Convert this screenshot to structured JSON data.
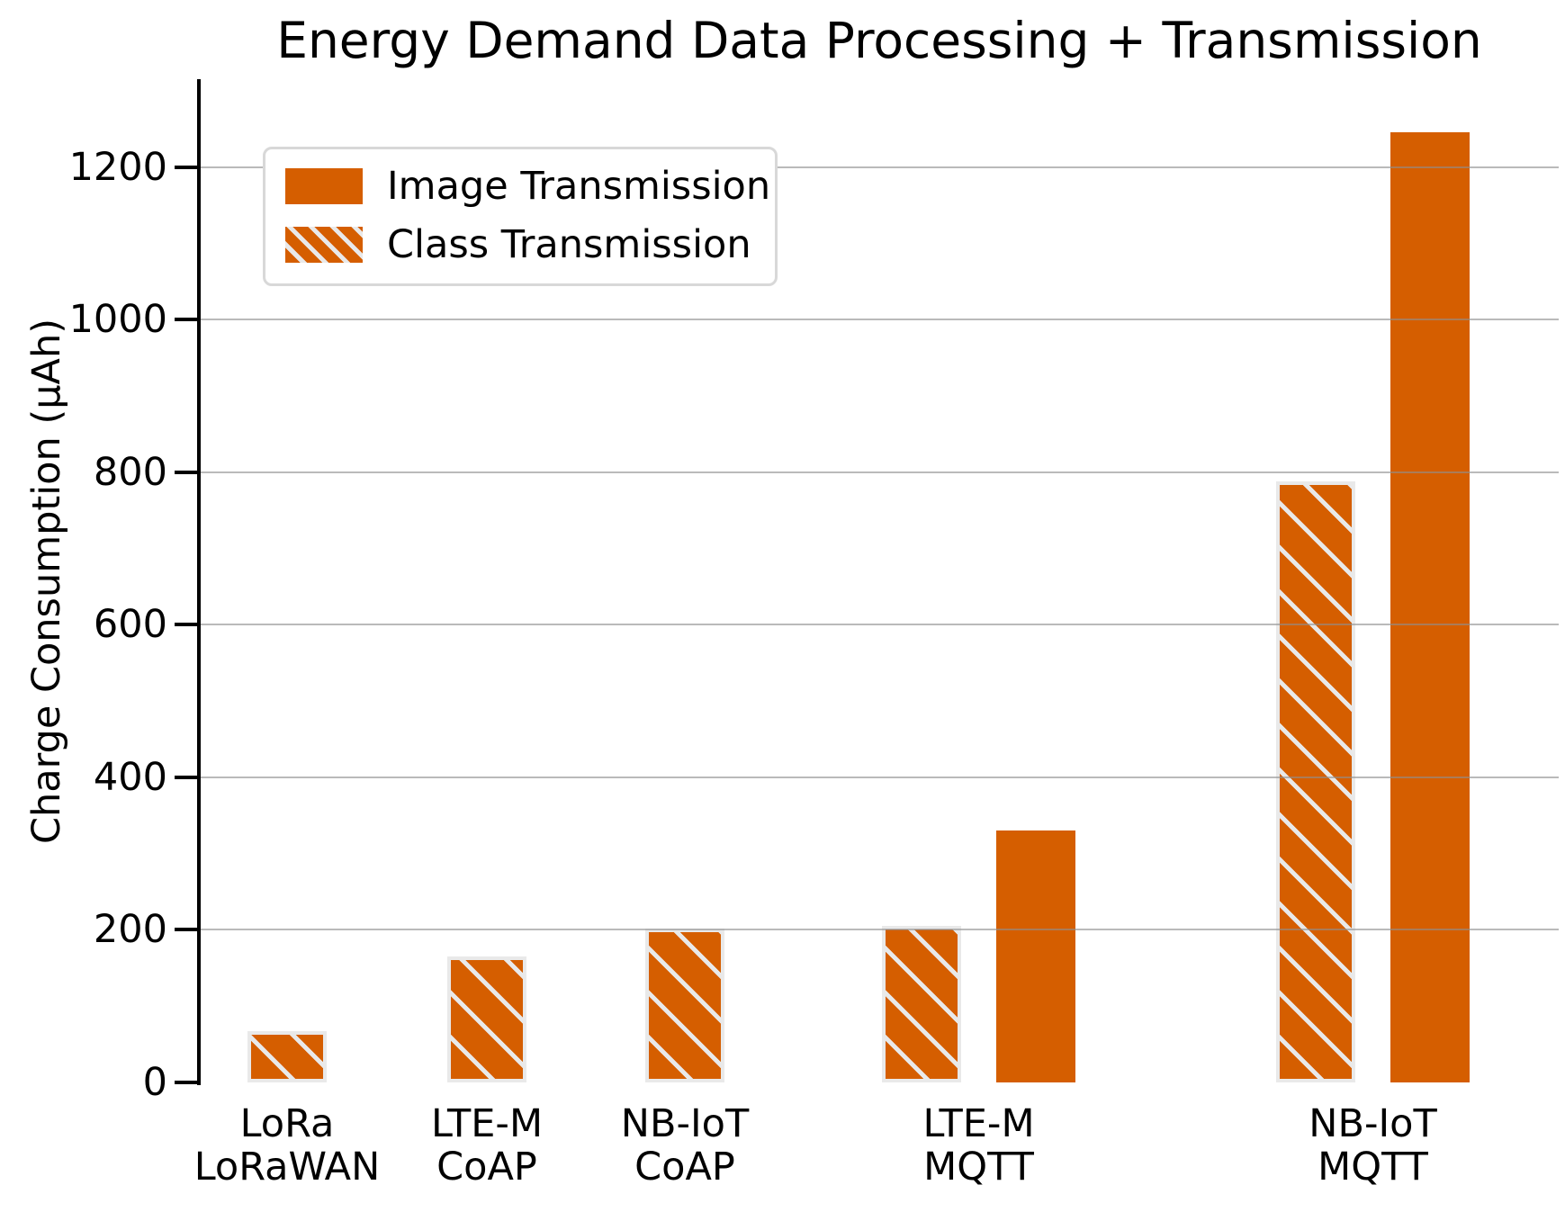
{
  "figure": {
    "title": "Energy Demand Data Processing + Transmission",
    "y_axis": {
      "label": "Charge Consumption (µAh)",
      "ticks": [
        0,
        200,
        400,
        600,
        800,
        1000,
        1200
      ],
      "max": 1315
    },
    "legend": {
      "items": [
        {
          "label": "Image Transmission",
          "style": "solid"
        },
        {
          "label": "Class Transmission",
          "style": "hatched"
        }
      ]
    }
  },
  "colors": {
    "bar_orange": "#D55E00",
    "hatch_light": "#E9E9E9",
    "grid_gray": "#8F8F8F",
    "text_black": "#000000"
  },
  "chart_data": {
    "type": "bar",
    "title": "Energy Demand Data Processing + Transmission",
    "xlabel": "",
    "ylabel": "Charge Consumption (µAh)",
    "units": "µAh",
    "ylim": [
      0,
      1315
    ],
    "grid": "horizontal-only",
    "legend_position": "upper-left",
    "categories": [
      "LoRa\nLoRaWAN",
      "LTE-M\nCoAP",
      "NB-IoT\nCoAP",
      "LTE-M\nMQTT",
      "NB-IoT\nMQTT"
    ],
    "series": [
      {
        "name": "Image Transmission",
        "style": "solid",
        "values": [
          null,
          null,
          null,
          330,
          1245
        ]
      },
      {
        "name": "Class Transmission",
        "style": "hatched",
        "values": [
          67,
          165,
          202,
          205,
          788
        ]
      }
    ]
  }
}
